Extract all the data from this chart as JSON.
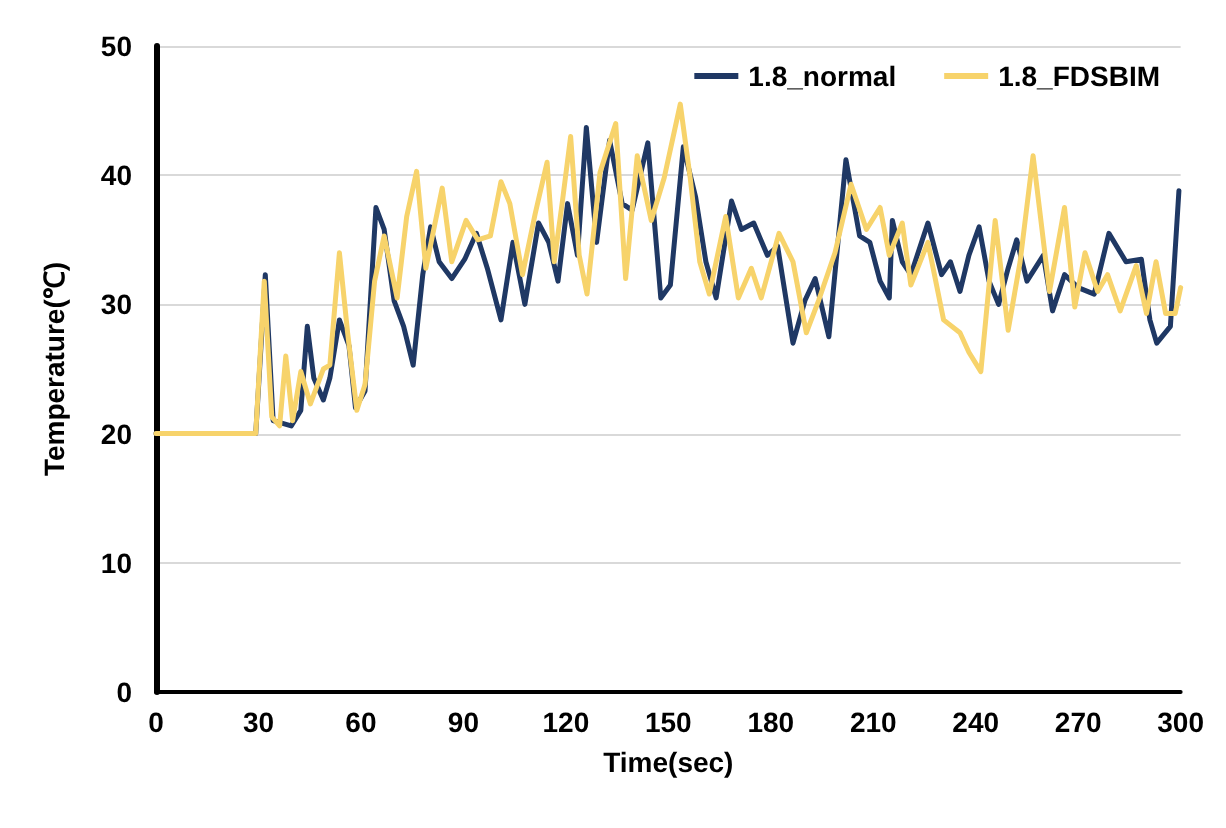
{
  "chart_data": {
    "type": "line",
    "xlabel": "Time(sec)",
    "ylabel": "Temperature(℃)",
    "xlim": [
      0,
      300
    ],
    "xticks": [
      0,
      30,
      60,
      90,
      120,
      150,
      180,
      210,
      240,
      270,
      300
    ],
    "ylim": [
      0,
      50
    ],
    "yticks": [
      0,
      10,
      20,
      30,
      40,
      50
    ],
    "grid": "y",
    "legend": "top right",
    "marker": "none",
    "line_style": "solid",
    "series": [
      {
        "name": "1.8_normal",
        "color": "#1f3864",
        "x": [
          0,
          29.2,
          32,
          34.3,
          39.6,
          42.4,
          44.3,
          46.2,
          49,
          50.9,
          53.7,
          56.5,
          58.4,
          61.2,
          64.4,
          66.8,
          69.7,
          72.5,
          75.3,
          78.1,
          80.4,
          82.9,
          86.6,
          90.4,
          93.8,
          97,
          101,
          104.5,
          108,
          112,
          115,
          117.7,
          120.5,
          123.4,
          126,
          129,
          132.8,
          136.5,
          139.4,
          144,
          147.8,
          150.6,
          154.4,
          158,
          161,
          164,
          168.5,
          171.4,
          175,
          179,
          182,
          186.5,
          190,
          193,
          197,
          202,
          206,
          209,
          212,
          214.7,
          215.6,
          218.5,
          221,
          226,
          230,
          232.6,
          235.4,
          238,
          241,
          243.9,
          246.7,
          249.5,
          252,
          255,
          259.8,
          262.5,
          266,
          270,
          274.7,
          279,
          284,
          288.5,
          291,
          293,
          297,
          299.5
        ],
        "values": [
          20,
          20,
          32.3,
          21,
          20.6,
          21.8,
          28.3,
          24.3,
          22.6,
          24.3,
          28.8,
          26.8,
          22,
          23.3,
          37.5,
          35.8,
          30.3,
          28.3,
          25.3,
          32.3,
          36,
          33.3,
          32,
          33.5,
          35.5,
          32.8,
          28.8,
          34.8,
          30,
          36.3,
          34.8,
          31.8,
          37.8,
          33.8,
          43.7,
          34.8,
          42.7,
          37.8,
          37.3,
          42.5,
          30.5,
          31.5,
          42.2,
          38.3,
          33.3,
          30.5,
          38,
          35.8,
          36.3,
          33.8,
          34.5,
          27,
          30.3,
          32,
          27.5,
          41.2,
          35.3,
          34.8,
          31.8,
          30.5,
          36.5,
          33.3,
          32.3,
          36.3,
          32.3,
          33.3,
          31,
          33.8,
          36,
          31.8,
          30,
          32.8,
          35,
          31.8,
          33.8,
          29.5,
          32.3,
          31.3,
          30.8,
          35.5,
          33.3,
          33.5,
          28.8,
          27,
          28.3,
          38.8
        ]
      },
      {
        "name": "1.8_FDSBIM",
        "color": "#f7d36b",
        "x": [
          0,
          29.2,
          31.7,
          33.9,
          36.2,
          38,
          40,
          42.4,
          45.2,
          49,
          50.9,
          53.7,
          56.1,
          58.8,
          61.2,
          64,
          66.8,
          70.6,
          73.4,
          76.3,
          79,
          83.8,
          86.6,
          90.8,
          94.2,
          97.9,
          101,
          103.6,
          107.3,
          111,
          114.5,
          116.6,
          119,
          121.4,
          123.9,
          126.2,
          130,
          134.6,
          137.5,
          140.9,
          145,
          148.8,
          153.5,
          156.4,
          159.2,
          162,
          166.8,
          170.5,
          174.3,
          177.2,
          182.4,
          186.5,
          190.4,
          194,
          198.8,
          203.5,
          208,
          212,
          214.7,
          218.5,
          221,
          226,
          230.6,
          235.4,
          238,
          241.5,
          245.7,
          249.5,
          253,
          256.8,
          261.6,
          266,
          269,
          272,
          275.7,
          278.6,
          282.3,
          287,
          290,
          292.8,
          295.6,
          298.4,
          300
        ],
        "values": [
          20,
          20,
          31.8,
          21.3,
          20.6,
          26,
          21,
          24.8,
          22.3,
          25,
          25.3,
          34,
          27.8,
          21.8,
          23.8,
          31.8,
          35.3,
          30.5,
          36.8,
          40.3,
          32.8,
          39,
          33.3,
          36.5,
          35,
          35.3,
          39.5,
          37.8,
          32.3,
          37,
          41,
          33.3,
          38,
          43,
          33.8,
          30.8,
          40.2,
          44,
          32,
          41.5,
          36.5,
          39.8,
          45.5,
          39.8,
          33.3,
          30.8,
          36.8,
          30.5,
          32.8,
          30.5,
          35.5,
          33.3,
          27.8,
          30.3,
          34,
          39.3,
          35.8,
          37.5,
          33.8,
          36.3,
          31.5,
          34.8,
          28.8,
          27.8,
          26.3,
          24.8,
          36.5,
          28,
          33.3,
          41.5,
          31,
          37.5,
          29.8,
          34,
          31,
          32.3,
          29.5,
          33,
          29.3,
          33.3,
          29.3,
          29.3,
          31.3
        ]
      }
    ]
  }
}
